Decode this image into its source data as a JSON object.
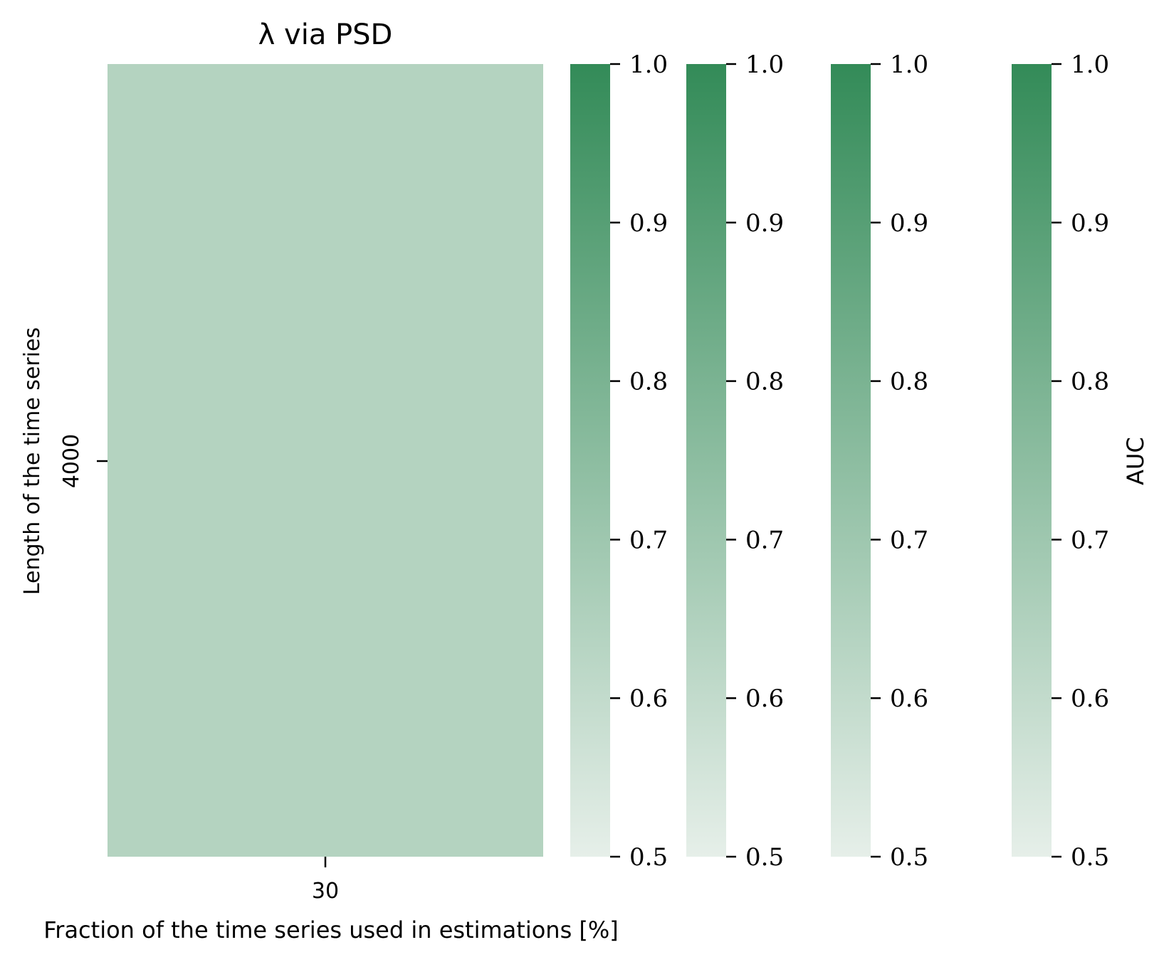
{
  "chart_data": {
    "type": "heatmap",
    "title": "λ via PSD",
    "xlabel": "Fraction of the time series used in estimations [%]",
    "ylabel": "Length of the time series",
    "x_categories": [
      "30"
    ],
    "y_categories": [
      "4000"
    ],
    "values": [
      [
        0.64
      ]
    ],
    "color_scale": {
      "min": 0.5,
      "max": 1.0,
      "low_color": "#e6efe9",
      "high_color": "#338b58",
      "ticks": [
        "0.5",
        "0.6",
        "0.7",
        "0.8",
        "0.9",
        "1.0"
      ]
    },
    "colorbars": [
      {
        "label": ""
      },
      {
        "label": ""
      },
      {
        "label": ""
      },
      {
        "label": "AUC"
      }
    ]
  }
}
